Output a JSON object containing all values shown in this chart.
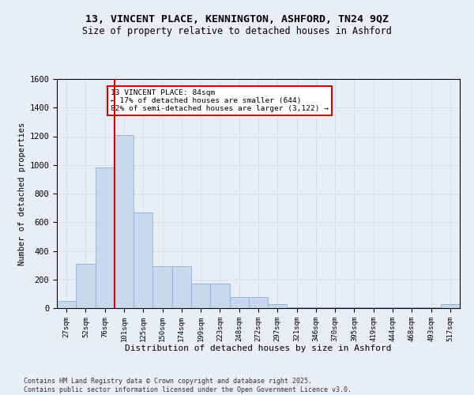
{
  "title_line1": "13, VINCENT PLACE, KENNINGTON, ASHFORD, TN24 9QZ",
  "title_line2": "Size of property relative to detached houses in Ashford",
  "xlabel": "Distribution of detached houses by size in Ashford",
  "ylabel": "Number of detached properties",
  "footnote1": "Contains HM Land Registry data © Crown copyright and database right 2025.",
  "footnote2": "Contains public sector information licensed under the Open Government Licence v3.0.",
  "bin_labels": [
    "27sqm",
    "52sqm",
    "76sqm",
    "101sqm",
    "125sqm",
    "150sqm",
    "174sqm",
    "199sqm",
    "223sqm",
    "248sqm",
    "272sqm",
    "297sqm",
    "321sqm",
    "346sqm",
    "370sqm",
    "395sqm",
    "419sqm",
    "444sqm",
    "468sqm",
    "493sqm",
    "517sqm"
  ],
  "bar_values": [
    50,
    310,
    980,
    1210,
    670,
    290,
    290,
    170,
    170,
    80,
    80,
    30,
    5,
    5,
    5,
    5,
    5,
    5,
    5,
    5,
    30
  ],
  "bar_color": "#c8d8ee",
  "bar_edge_color": "#8ab0cc",
  "vline_x_idx": 2,
  "vline_color": "#cc0000",
  "annotation_text": "13 VINCENT PLACE: 84sqm\n← 17% of detached houses are smaller (644)\n82% of semi-detached houses are larger (3,122) →",
  "annotation_box_color": "#ffffff",
  "annotation_box_edge": "#cc0000",
  "ylim": [
    0,
    1600
  ],
  "yticks": [
    0,
    200,
    400,
    600,
    800,
    1000,
    1200,
    1400,
    1600
  ],
  "grid_color": "#d0d8e8",
  "bg_color": "#e8eef8",
  "plot_bg_color": "#e8eef8",
  "title_fontsize": 9.5,
  "subtitle_fontsize": 8.5,
  "footnote_fontsize": 6.0
}
